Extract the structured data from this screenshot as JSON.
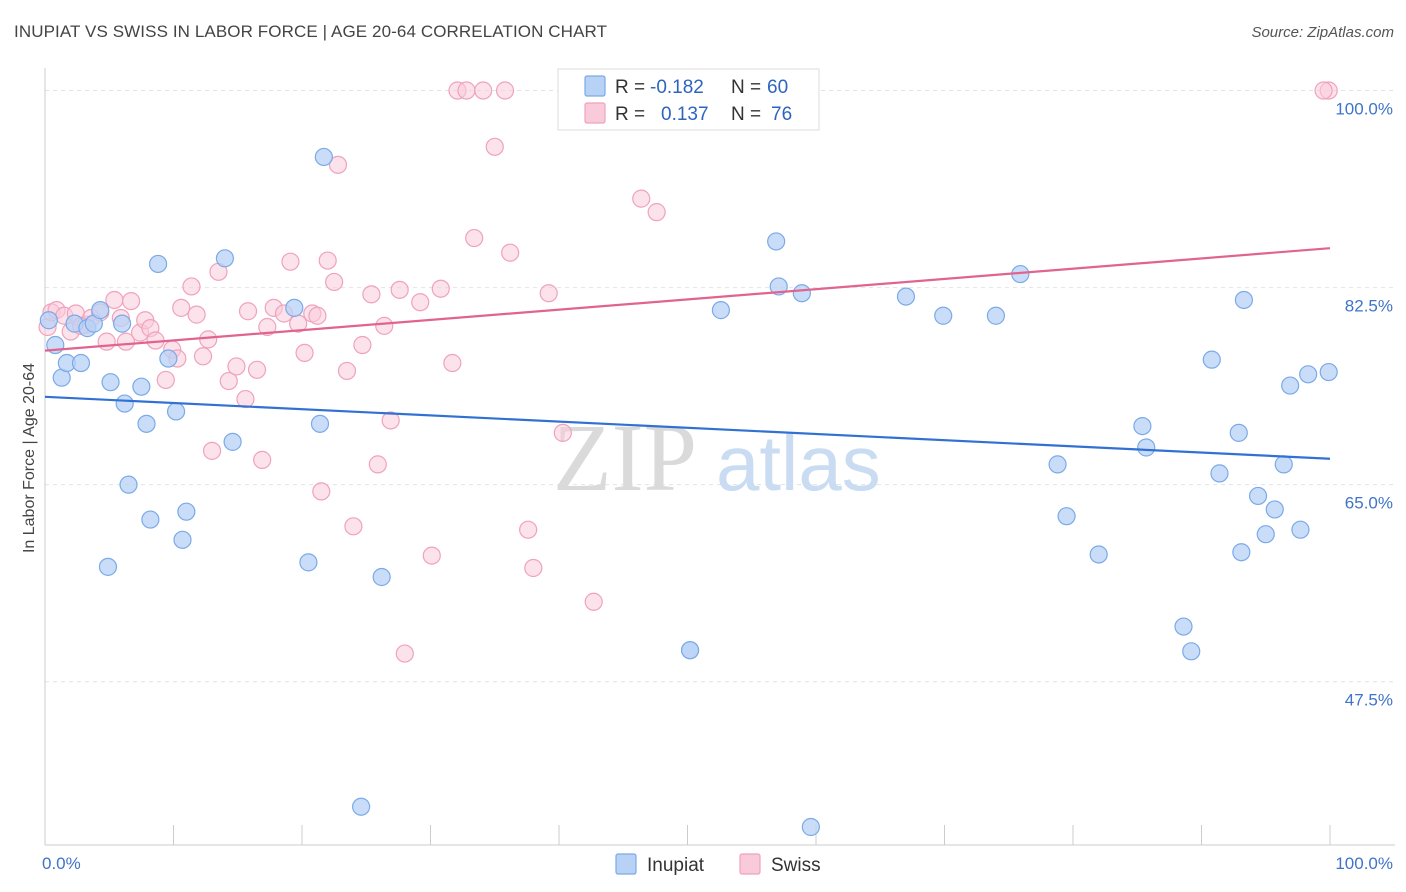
{
  "title": "INUPIAT VS SWISS IN LABOR FORCE | AGE 20-64 CORRELATION CHART",
  "source": "Source: ZipAtlas.com",
  "watermark": {
    "zip": "ZIP",
    "atlas": "atlas"
  },
  "chart_data": {
    "type": "scatter",
    "ylabel": "In Labor Force | Age 20-64",
    "xlim": [
      0,
      100
    ],
    "ylim": [
      33,
      102
    ],
    "x_tick_labels": [
      {
        "value": 0,
        "label": "0.0%"
      },
      {
        "value": 100,
        "label": "100.0%"
      }
    ],
    "x_minor_ticks": [
      0,
      10,
      20,
      30,
      40,
      50,
      60,
      70,
      80,
      90,
      100
    ],
    "y_ticks": [
      {
        "value": 100,
        "label": "100.0%"
      },
      {
        "value": 82.5,
        "label": "82.5%"
      },
      {
        "value": 65,
        "label": "65.0%"
      },
      {
        "value": 47.5,
        "label": "47.5%"
      }
    ],
    "gridlines": [
      100,
      82.5,
      65,
      47.5
    ],
    "legend_position": "top-center",
    "series": [
      {
        "name": "Inupiat",
        "color": "#7aaae8",
        "fill": "#b8d2f5",
        "line_color": "#3271d4",
        "R": "-0.182",
        "N": "60",
        "trend": {
          "x0": 0,
          "y0": 72.8,
          "x1": 100,
          "y1": 67.3
        },
        "points": [
          [
            0.3,
            79.6
          ],
          [
            0.8,
            77.4
          ],
          [
            1.3,
            74.5
          ],
          [
            1.7,
            75.8
          ],
          [
            2.3,
            79.3
          ],
          [
            2.8,
            75.8
          ],
          [
            3.3,
            78.9
          ],
          [
            3.8,
            79.3
          ],
          [
            4.3,
            80.5
          ],
          [
            4.9,
            57.7
          ],
          [
            5.1,
            74.1
          ],
          [
            6.0,
            79.3
          ],
          [
            6.2,
            72.2
          ],
          [
            6.5,
            65.0
          ],
          [
            7.5,
            73.7
          ],
          [
            7.9,
            70.4
          ],
          [
            8.2,
            61.9
          ],
          [
            8.8,
            84.6
          ],
          [
            9.6,
            76.2
          ],
          [
            10.2,
            71.5
          ],
          [
            10.7,
            60.1
          ],
          [
            11.0,
            62.6
          ],
          [
            14.0,
            85.1
          ],
          [
            14.6,
            68.8
          ],
          [
            19.4,
            80.7
          ],
          [
            20.5,
            58.1
          ],
          [
            21.4,
            70.4
          ],
          [
            21.7,
            94.1
          ],
          [
            24.6,
            36.4
          ],
          [
            26.2,
            56.8
          ],
          [
            50.2,
            50.3
          ],
          [
            59.6,
            34.6
          ],
          [
            50.2,
            50.3
          ],
          [
            52.6,
            80.5
          ],
          [
            56.9,
            86.6
          ],
          [
            57.1,
            82.6
          ],
          [
            58.9,
            82.0
          ],
          [
            67.0,
            81.7
          ],
          [
            69.9,
            80.0
          ],
          [
            74.0,
            80.0
          ],
          [
            75.9,
            83.7
          ],
          [
            78.8,
            66.8
          ],
          [
            79.5,
            62.2
          ],
          [
            82.0,
            58.8
          ],
          [
            85.4,
            70.2
          ],
          [
            85.7,
            68.3
          ],
          [
            88.6,
            52.4
          ],
          [
            89.2,
            50.2
          ],
          [
            90.8,
            76.1
          ],
          [
            91.4,
            66.0
          ],
          [
            92.9,
            69.6
          ],
          [
            93.1,
            59.0
          ],
          [
            93.3,
            81.4
          ],
          [
            94.4,
            64.0
          ],
          [
            95.0,
            60.6
          ],
          [
            95.7,
            62.8
          ],
          [
            96.4,
            66.8
          ],
          [
            96.9,
            73.8
          ],
          [
            97.7,
            61.0
          ],
          [
            98.3,
            74.8
          ],
          [
            99.9,
            75.0
          ]
        ]
      },
      {
        "name": "Swiss",
        "color": "#f0a2bc",
        "fill": "#f9cad9",
        "line_color": "#e0648f",
        "R": "0.137",
        "N": "76",
        "trend": {
          "x0": 0,
          "y0": 76.9,
          "x1": 100,
          "y1": 86.0
        },
        "points": [
          [
            0.2,
            79.0
          ],
          [
            0.5,
            80.3
          ],
          [
            0.9,
            80.5
          ],
          [
            1.5,
            80.0
          ],
          [
            2.0,
            78.6
          ],
          [
            2.4,
            80.2
          ],
          [
            3.2,
            79.2
          ],
          [
            3.6,
            79.8
          ],
          [
            4.3,
            80.3
          ],
          [
            4.8,
            77.7
          ],
          [
            5.4,
            81.4
          ],
          [
            5.9,
            79.8
          ],
          [
            6.3,
            77.7
          ],
          [
            6.7,
            81.3
          ],
          [
            7.4,
            78.5
          ],
          [
            7.8,
            79.6
          ],
          [
            8.2,
            78.9
          ],
          [
            8.6,
            77.8
          ],
          [
            9.4,
            74.3
          ],
          [
            9.9,
            77.0
          ],
          [
            10.3,
            76.2
          ],
          [
            10.6,
            80.7
          ],
          [
            11.4,
            82.6
          ],
          [
            11.8,
            80.1
          ],
          [
            12.3,
            76.4
          ],
          [
            12.7,
            77.9
          ],
          [
            13.0,
            68.0
          ],
          [
            13.5,
            83.9
          ],
          [
            14.3,
            74.2
          ],
          [
            14.9,
            75.5
          ],
          [
            15.6,
            72.6
          ],
          [
            15.8,
            80.4
          ],
          [
            16.5,
            75.2
          ],
          [
            16.9,
            67.2
          ],
          [
            17.3,
            79.0
          ],
          [
            17.8,
            80.7
          ],
          [
            18.6,
            80.2
          ],
          [
            19.1,
            84.8
          ],
          [
            19.7,
            79.3
          ],
          [
            20.2,
            76.7
          ],
          [
            20.8,
            80.2
          ],
          [
            21.2,
            80.0
          ],
          [
            21.5,
            64.4
          ],
          [
            22.0,
            84.9
          ],
          [
            22.5,
            83.0
          ],
          [
            22.8,
            93.4
          ],
          [
            23.5,
            75.1
          ],
          [
            24.0,
            61.3
          ],
          [
            24.7,
            77.4
          ],
          [
            25.4,
            81.9
          ],
          [
            25.9,
            66.8
          ],
          [
            26.4,
            79.1
          ],
          [
            26.9,
            70.7
          ],
          [
            27.6,
            82.3
          ],
          [
            28.0,
            50.0
          ],
          [
            29.2,
            81.2
          ],
          [
            30.1,
            58.7
          ],
          [
            30.8,
            82.4
          ],
          [
            31.7,
            75.8
          ],
          [
            32.1,
            100
          ],
          [
            32.8,
            100
          ],
          [
            33.4,
            86.9
          ],
          [
            34.1,
            100
          ],
          [
            35.0,
            95.0
          ],
          [
            35.8,
            100
          ],
          [
            36.2,
            85.6
          ],
          [
            37.6,
            61.0
          ],
          [
            38.0,
            57.6
          ],
          [
            39.2,
            82.0
          ],
          [
            40.3,
            69.6
          ],
          [
            42.7,
            54.6
          ],
          [
            46.4,
            90.4
          ],
          [
            47.6,
            89.2
          ],
          [
            99.9,
            100
          ],
          [
            99.5,
            100
          ],
          [
            2.8,
            79.1
          ]
        ]
      }
    ]
  },
  "legend": {
    "r_label": "R =",
    "n_label": "N ="
  }
}
